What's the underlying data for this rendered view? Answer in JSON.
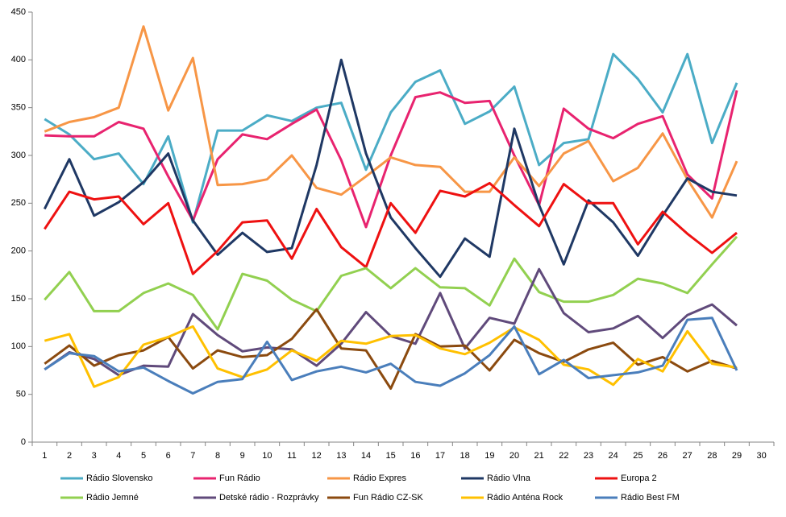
{
  "chart_data": {
    "type": "line",
    "categories": [
      "1",
      "2",
      "3",
      "4",
      "5",
      "6",
      "7",
      "8",
      "9",
      "10",
      "11",
      "12",
      "13",
      "14",
      "15",
      "16",
      "17",
      "18",
      "19",
      "20",
      "21",
      "22",
      "23",
      "24",
      "25",
      "26",
      "27",
      "28",
      "29",
      "30"
    ],
    "ylim": [
      0,
      450
    ],
    "yticks": [
      0,
      50,
      100,
      150,
      200,
      250,
      300,
      350,
      400,
      450
    ],
    "grid": false,
    "legend": "bottom",
    "series": [
      {
        "name": "Rádio Slovensko",
        "color": "#4bacc6",
        "values": [
          338,
          322,
          296,
          302,
          270,
          320,
          230,
          326,
          326,
          342,
          336,
          350,
          355,
          285,
          345,
          377,
          389,
          333,
          346,
          372,
          290,
          313,
          317,
          406,
          380,
          345,
          406,
          313,
          376,
          null
        ]
      },
      {
        "name": "Fun Rádio",
        "color": "#e8236f",
        "values": [
          321,
          320,
          320,
          335,
          328,
          278,
          232,
          296,
          322,
          317,
          333,
          348,
          295,
          225,
          300,
          361,
          366,
          355,
          357,
          300,
          248,
          349,
          328,
          318,
          333,
          341,
          280,
          255,
          368,
          null
        ]
      },
      {
        "name": "Rádio Expres",
        "color": "#f79646",
        "values": [
          325,
          335,
          340,
          350,
          435,
          347,
          402,
          269,
          270,
          275,
          300,
          266,
          259,
          278,
          298,
          290,
          288,
          262,
          262,
          298,
          268,
          302,
          315,
          273,
          287,
          323,
          275,
          235,
          294,
          null
        ]
      },
      {
        "name": "Rádio Vlna",
        "color": "#1f3864",
        "values": [
          244,
          296,
          237,
          251,
          272,
          302,
          232,
          196,
          219,
          199,
          203,
          290,
          400,
          302,
          235,
          203,
          173,
          213,
          194,
          328,
          248,
          186,
          253,
          230,
          195,
          237,
          276,
          262,
          258,
          null
        ]
      },
      {
        "name": "Europa 2",
        "color": "#ee1111",
        "values": [
          223,
          262,
          254,
          257,
          228,
          250,
          176,
          200,
          230,
          232,
          192,
          244,
          204,
          183,
          250,
          219,
          263,
          257,
          271,
          248,
          226,
          270,
          250,
          250,
          207,
          241,
          218,
          198,
          219,
          null
        ]
      },
      {
        "name": "Rádio Jemné",
        "color": "#92d050",
        "values": [
          149,
          178,
          137,
          137,
          156,
          166,
          154,
          118,
          176,
          169,
          149,
          137,
          174,
          182,
          161,
          182,
          162,
          161,
          143,
          192,
          157,
          147,
          147,
          154,
          171,
          166,
          156,
          186,
          215,
          null
        ]
      },
      {
        "name": "Detské rádio - Rozprávky",
        "color": "#604a7b",
        "values": [
          76,
          94,
          87,
          70,
          80,
          79,
          134,
          112,
          95,
          99,
          97,
          80,
          103,
          136,
          111,
          103,
          156,
          98,
          130,
          124,
          181,
          135,
          115,
          119,
          132,
          109,
          133,
          144,
          122,
          null
        ]
      },
      {
        "name": "Fun Rádio CZ-SK",
        "color": "#8b4a0f",
        "values": [
          82,
          101,
          80,
          91,
          96,
          110,
          77,
          96,
          89,
          91,
          108,
          139,
          98,
          96,
          56,
          113,
          100,
          101,
          75,
          107,
          93,
          84,
          97,
          104,
          81,
          89,
          74,
          85,
          77,
          null
        ]
      },
      {
        "name": "Rádio Anténa Rock",
        "color": "#ffc000",
        "values": [
          106,
          113,
          58,
          68,
          102,
          110,
          121,
          77,
          68,
          76,
          96,
          85,
          106,
          103,
          111,
          112,
          98,
          92,
          104,
          120,
          107,
          81,
          76,
          60,
          87,
          74,
          116,
          82,
          78,
          null
        ]
      },
      {
        "name": "Rádio Best FM",
        "color": "#4a7ebb",
        "values": [
          76,
          93,
          90,
          74,
          78,
          64,
          51,
          63,
          66,
          105,
          65,
          74,
          79,
          73,
          82,
          63,
          59,
          72,
          91,
          121,
          71,
          86,
          67,
          70,
          73,
          80,
          128,
          130,
          75,
          null
        ]
      }
    ]
  }
}
